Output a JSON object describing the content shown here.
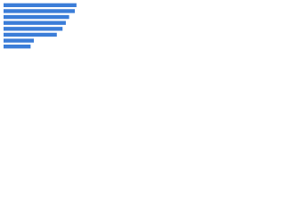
{
  "chart_data": {
    "type": "bar",
    "orientation": "horizontal",
    "categories": [
      null,
      null,
      null,
      null,
      null,
      null,
      null,
      null
    ],
    "values": [
      89,
      87,
      80,
      76,
      72,
      65,
      37,
      33
    ],
    "color": "#3b7dd8",
    "xlim": [
      0,
      100
    ]
  }
}
